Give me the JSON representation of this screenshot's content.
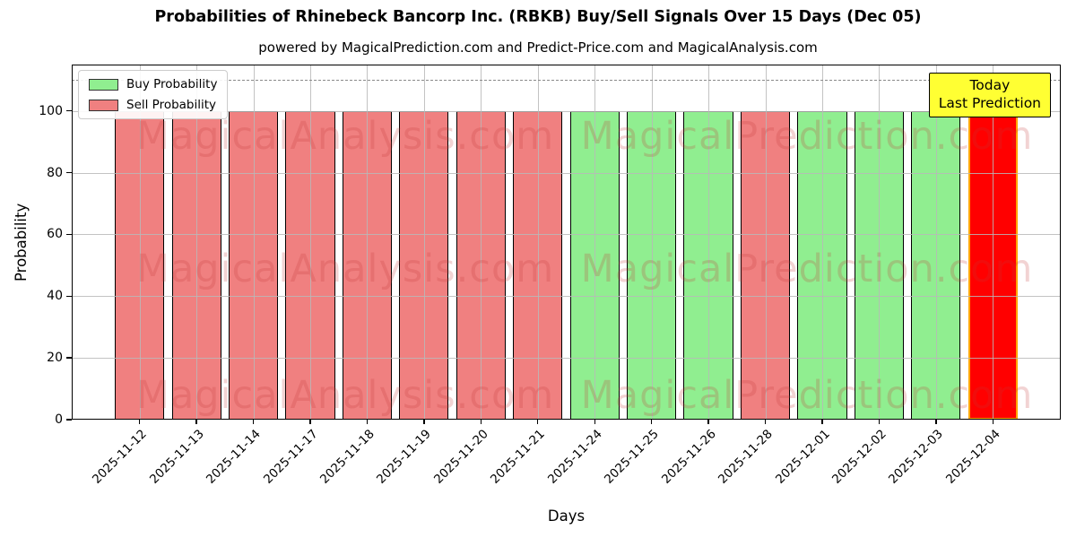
{
  "chart_data": {
    "type": "bar",
    "title": "Probabilities of Rhinebeck Bancorp Inc. (RBKB) Buy/Sell Signals Over 15 Days (Dec 05)",
    "subtitle": "powered by MagicalPrediction.com and Predict-Price.com and MagicalAnalysis.com",
    "xlabel": "Days",
    "ylabel": "Probability",
    "ylim": [
      0,
      115
    ],
    "yticks": [
      0,
      20,
      40,
      60,
      80,
      100
    ],
    "grid": true,
    "dashed_line_y": 110,
    "legend": {
      "position": "upper-left",
      "entries": [
        {
          "label": "Buy Probability",
          "color": "#90EE90"
        },
        {
          "label": "Sell Probability",
          "color": "#F08080"
        }
      ]
    },
    "categories": [
      "2025-11-12",
      "2025-11-13",
      "2025-11-14",
      "2025-11-17",
      "2025-11-18",
      "2025-11-19",
      "2025-11-20",
      "2025-11-21",
      "2025-11-24",
      "2025-11-25",
      "2025-11-26",
      "2025-11-28",
      "2025-12-01",
      "2025-12-02",
      "2025-12-03",
      "2025-12-04"
    ],
    "bars": [
      {
        "date": "2025-11-12",
        "value": 100,
        "signal": "sell"
      },
      {
        "date": "2025-11-13",
        "value": 100,
        "signal": "sell"
      },
      {
        "date": "2025-11-14",
        "value": 100,
        "signal": "sell"
      },
      {
        "date": "2025-11-17",
        "value": 100,
        "signal": "sell"
      },
      {
        "date": "2025-11-18",
        "value": 100,
        "signal": "sell"
      },
      {
        "date": "2025-11-19",
        "value": 100,
        "signal": "sell"
      },
      {
        "date": "2025-11-20",
        "value": 100,
        "signal": "sell"
      },
      {
        "date": "2025-11-21",
        "value": 100,
        "signal": "sell"
      },
      {
        "date": "2025-11-24",
        "value": 100,
        "signal": "buy"
      },
      {
        "date": "2025-11-25",
        "value": 100,
        "signal": "buy"
      },
      {
        "date": "2025-11-26",
        "value": 100,
        "signal": "buy"
      },
      {
        "date": "2025-11-28",
        "value": 100,
        "signal": "sell"
      },
      {
        "date": "2025-12-01",
        "value": 100,
        "signal": "buy"
      },
      {
        "date": "2025-12-02",
        "value": 100,
        "signal": "buy"
      },
      {
        "date": "2025-12-03",
        "value": 100,
        "signal": "buy"
      },
      {
        "date": "2025-12-04",
        "value": 100,
        "signal": "today"
      }
    ],
    "colors": {
      "buy": "#90EE90",
      "sell": "#F08080",
      "today": "#FF0000",
      "today_edge": "#FFA500",
      "annotation_bg": "#FFFF33"
    },
    "annotation": {
      "lines": [
        "Today",
        "Last Prediction"
      ]
    },
    "watermarks": [
      "MagicalAnalysis.com",
      "MagicalPrediction.com"
    ]
  }
}
